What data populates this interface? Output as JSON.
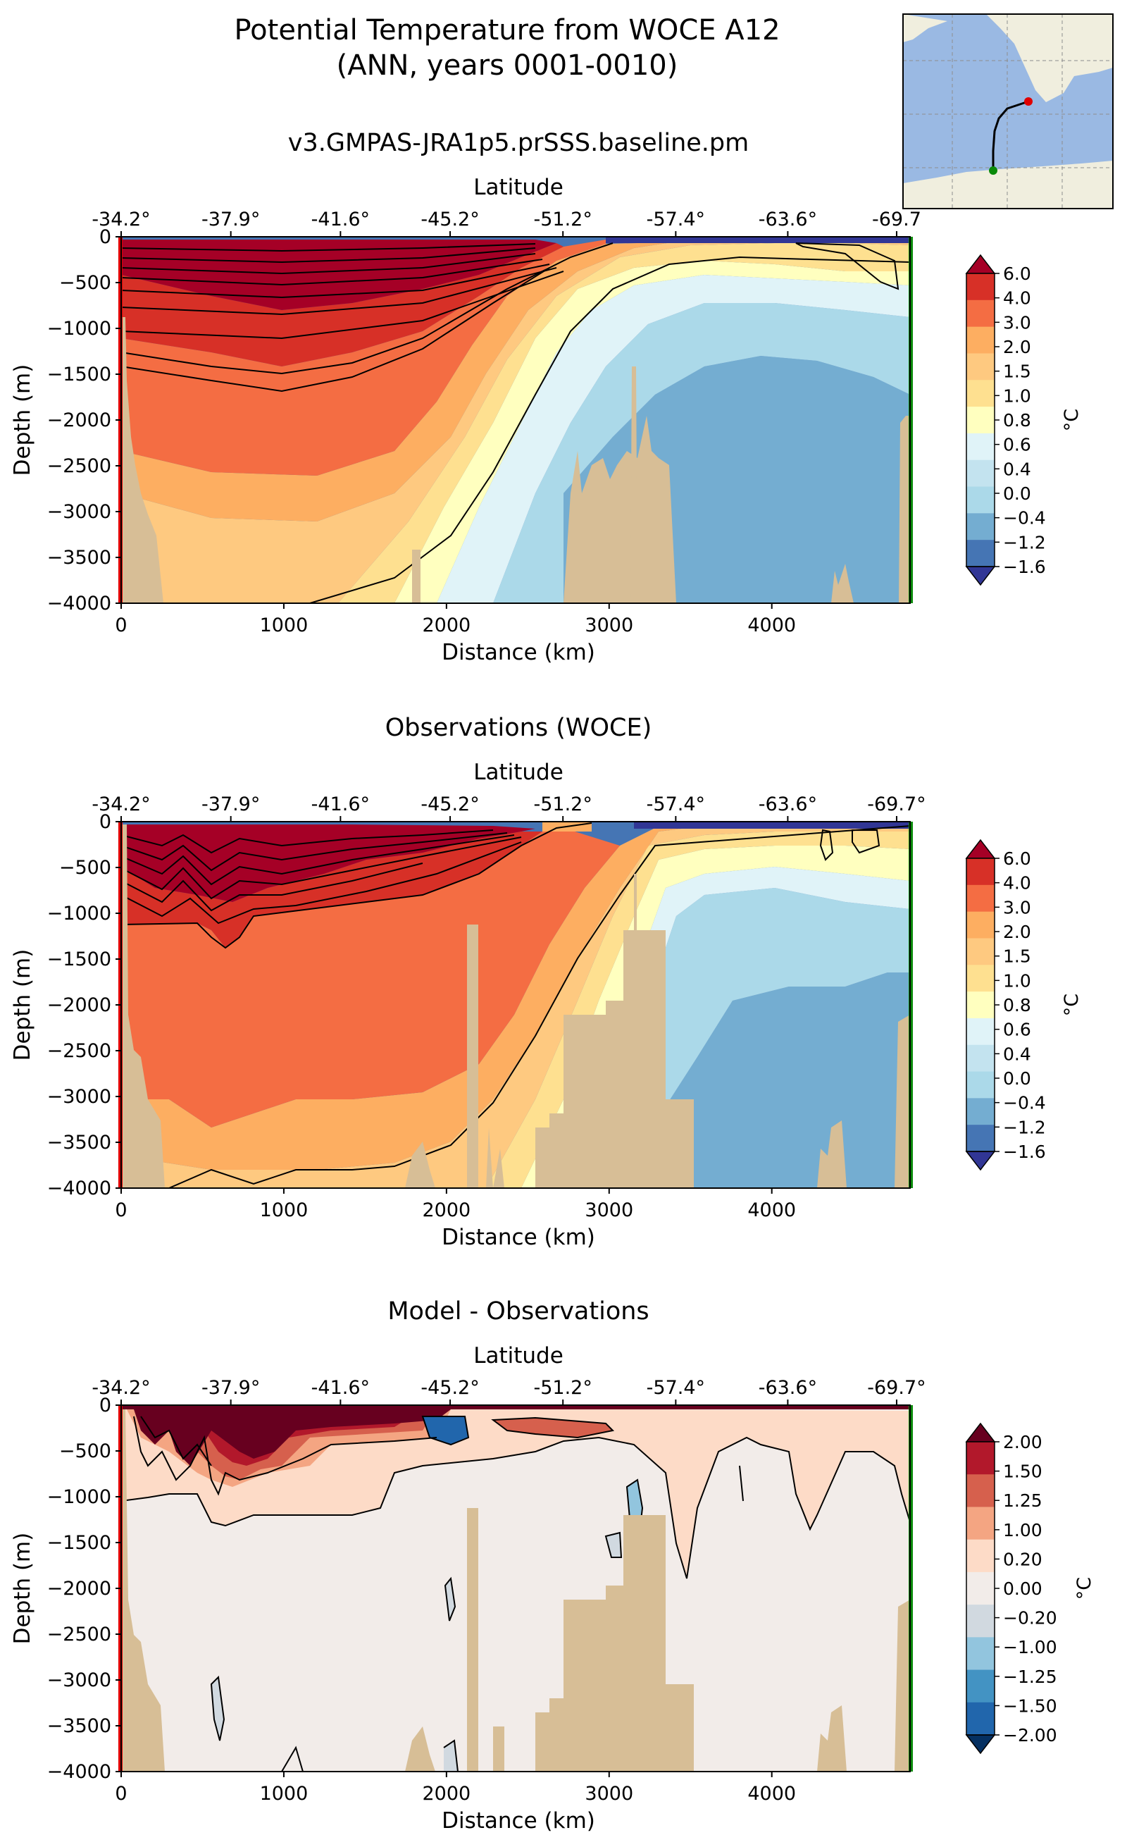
{
  "figure": {
    "title_line1": "Potential Temperature from WOCE A12",
    "title_line2": "(ANN, years 0001-0010)"
  },
  "inset_map": {
    "ocean_color": "#9ab9e3",
    "land_color": "#f0eede",
    "start_marker_color": "#e00000",
    "end_marker_color": "#0a8a0a"
  },
  "chart_data": [
    {
      "type": "heatmap",
      "title": "v3.GMPAS-JRA1p5.prSSS.baseline.pm",
      "xlabel": "Distance (km)",
      "ylabel": "Depth (m)",
      "top_xlabel": "Latitude",
      "xlim": [
        0,
        4850
      ],
      "ylim": [
        -4000,
        0
      ],
      "x_ticks": [
        0,
        1000,
        2000,
        3000,
        4000
      ],
      "y_ticks": [
        0,
        -500,
        -1000,
        -1500,
        -2000,
        -2500,
        -3000,
        -3500,
        -4000
      ],
      "lat_ticks": [
        "-34.2°",
        "-37.9°",
        "-41.6°",
        "-45.2°",
        "-51.2°",
        "-57.4°",
        "-63.6°",
        "-69.7"
      ],
      "colorbar_label": "°C",
      "colorbar_levels": [
        "6.0",
        "4.0",
        "3.0",
        "2.0",
        "1.5",
        "1.0",
        "0.8",
        "0.6",
        "0.4",
        "0.0",
        "−0.4",
        "−1.2",
        "−1.6"
      ],
      "colorbar_colors": [
        "#a50026",
        "#d73027",
        "#f46d43",
        "#fdae61",
        "#fec980",
        "#fee090",
        "#ffffbf",
        "#e0f3f8",
        "#c3e3ef",
        "#abd9e9",
        "#74add1",
        "#4575b4",
        "#313695"
      ]
    },
    {
      "type": "heatmap",
      "title": "Observations (WOCE)",
      "xlabel": "Distance (km)",
      "ylabel": "Depth (m)",
      "top_xlabel": "Latitude",
      "xlim": [
        0,
        4850
      ],
      "ylim": [
        -4000,
        0
      ],
      "x_ticks": [
        0,
        1000,
        2000,
        3000,
        4000
      ],
      "y_ticks": [
        0,
        -500,
        -1000,
        -1500,
        -2000,
        -2500,
        -3000,
        -3500,
        -4000
      ],
      "lat_ticks": [
        "-34.2°",
        "-37.9°",
        "-41.6°",
        "-45.2°",
        "-51.2°",
        "-57.4°",
        "-63.6°",
        "-69.7°"
      ],
      "colorbar_label": "°C",
      "colorbar_levels": [
        "6.0",
        "4.0",
        "3.0",
        "2.0",
        "1.5",
        "1.0",
        "0.8",
        "0.6",
        "0.4",
        "0.0",
        "−0.4",
        "−1.2",
        "−1.6"
      ],
      "colorbar_colors": [
        "#a50026",
        "#d73027",
        "#f46d43",
        "#fdae61",
        "#fec980",
        "#fee090",
        "#ffffbf",
        "#e0f3f8",
        "#c3e3ef",
        "#abd9e9",
        "#74add1",
        "#4575b4",
        "#313695"
      ]
    },
    {
      "type": "heatmap",
      "title": "Model - Observations",
      "xlabel": "Distance (km)",
      "ylabel": "Depth (m)",
      "top_xlabel": "Latitude",
      "xlim": [
        0,
        4850
      ],
      "ylim": [
        -4000,
        0
      ],
      "x_ticks": [
        0,
        1000,
        2000,
        3000,
        4000
      ],
      "y_ticks": [
        0,
        -500,
        -1000,
        -1500,
        -2000,
        -2500,
        -3000,
        -3500,
        -4000
      ],
      "lat_ticks": [
        "-34.2°",
        "-37.9°",
        "-41.6°",
        "-45.2°",
        "-51.2°",
        "-57.4°",
        "-63.6°",
        "-69.7°"
      ],
      "colorbar_label": "°C",
      "colorbar_levels": [
        "2.00",
        "1.50",
        "1.25",
        "1.00",
        "0.20",
        "0.00",
        "−0.20",
        "−1.00",
        "−1.25",
        "−1.50",
        "−2.00"
      ],
      "colorbar_colors": [
        "#67001f",
        "#b2182b",
        "#d6604d",
        "#f4a582",
        "#fddbc7",
        "#f2ece9",
        "#d1d9e0",
        "#92c5de",
        "#4393c3",
        "#2166ac",
        "#053061"
      ]
    }
  ]
}
